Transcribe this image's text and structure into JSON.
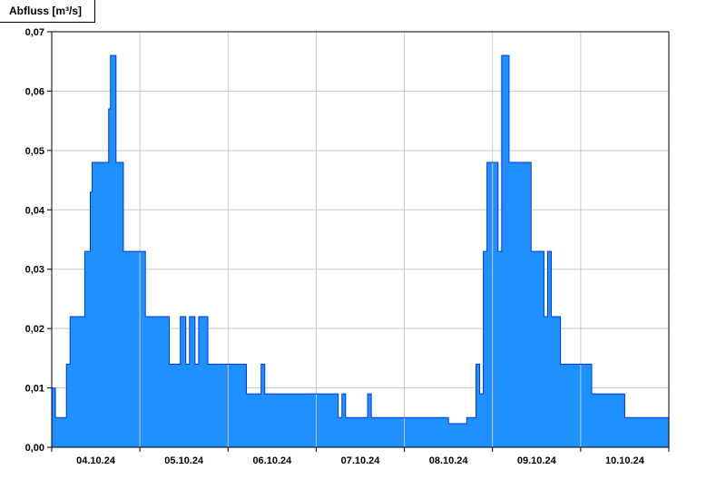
{
  "title": "Abfluss [m³/s]",
  "chart_data": {
    "type": "area",
    "title": "Abfluss [m³/s]",
    "ylabel": "Abfluss [m³/s]",
    "y_unit": "m³/s",
    "decimal_separator": ",",
    "ylim": [
      0,
      0.07
    ],
    "y_ticks": [
      0,
      0.01,
      0.02,
      0.03,
      0.04,
      0.05,
      0.06,
      0.07
    ],
    "y_tick_labels": [
      "0,00",
      "0,01",
      "0,02",
      "0,03",
      "0,04",
      "0,05",
      "0,06",
      "0,07"
    ],
    "x_start_hours": 0,
    "x_end_hours": 168,
    "x_day_labels": [
      "04.10.24",
      "05.10.24",
      "06.10.24",
      "07.10.24",
      "08.10.24",
      "09.10.24",
      "10.10.24"
    ],
    "x_day_label_positions_hours": [
      12,
      36,
      60,
      84,
      108,
      132,
      156
    ],
    "x_gridline_hours": [
      24,
      48,
      72,
      96,
      120,
      144
    ],
    "grid": true,
    "legend": "none",
    "colors": {
      "fill": "#1E90FF",
      "stroke": "#0033EE",
      "grid": "#C8C8C8",
      "axis": "#000000",
      "background": "#FFFFFF"
    },
    "steps": [
      {
        "t": 0,
        "v": 0.01
      },
      {
        "t": 1,
        "v": 0.005
      },
      {
        "t": 4,
        "v": 0.014
      },
      {
        "t": 5,
        "v": 0.022
      },
      {
        "t": 9,
        "v": 0.033
      },
      {
        "t": 10.5,
        "v": 0.043
      },
      {
        "t": 11,
        "v": 0.048
      },
      {
        "t": 15.5,
        "v": 0.057
      },
      {
        "t": 16,
        "v": 0.066
      },
      {
        "t": 17.5,
        "v": 0.048
      },
      {
        "t": 19.5,
        "v": 0.033
      },
      {
        "t": 25.5,
        "v": 0.022
      },
      {
        "t": 32,
        "v": 0.014
      },
      {
        "t": 35,
        "v": 0.022
      },
      {
        "t": 36.5,
        "v": 0.014
      },
      {
        "t": 37.5,
        "v": 0.022
      },
      {
        "t": 39,
        "v": 0.014
      },
      {
        "t": 40,
        "v": 0.022
      },
      {
        "t": 42.5,
        "v": 0.014
      },
      {
        "t": 53,
        "v": 0.009
      },
      {
        "t": 57,
        "v": 0.014
      },
      {
        "t": 58,
        "v": 0.009
      },
      {
        "t": 78,
        "v": 0.005
      },
      {
        "t": 79,
        "v": 0.009
      },
      {
        "t": 80,
        "v": 0.005
      },
      {
        "t": 86,
        "v": 0.009
      },
      {
        "t": 87,
        "v": 0.005
      },
      {
        "t": 108,
        "v": 0.004
      },
      {
        "t": 113,
        "v": 0.005
      },
      {
        "t": 115.5,
        "v": 0.014
      },
      {
        "t": 116.5,
        "v": 0.009
      },
      {
        "t": 117.5,
        "v": 0.033
      },
      {
        "t": 118.5,
        "v": 0.048
      },
      {
        "t": 121.5,
        "v": 0.033
      },
      {
        "t": 122.5,
        "v": 0.066
      },
      {
        "t": 124.5,
        "v": 0.048
      },
      {
        "t": 130.5,
        "v": 0.033
      },
      {
        "t": 134,
        "v": 0.022
      },
      {
        "t": 135,
        "v": 0.033
      },
      {
        "t": 136,
        "v": 0.022
      },
      {
        "t": 138.5,
        "v": 0.014
      },
      {
        "t": 147,
        "v": 0.009
      },
      {
        "t": 156,
        "v": 0.005
      }
    ]
  }
}
